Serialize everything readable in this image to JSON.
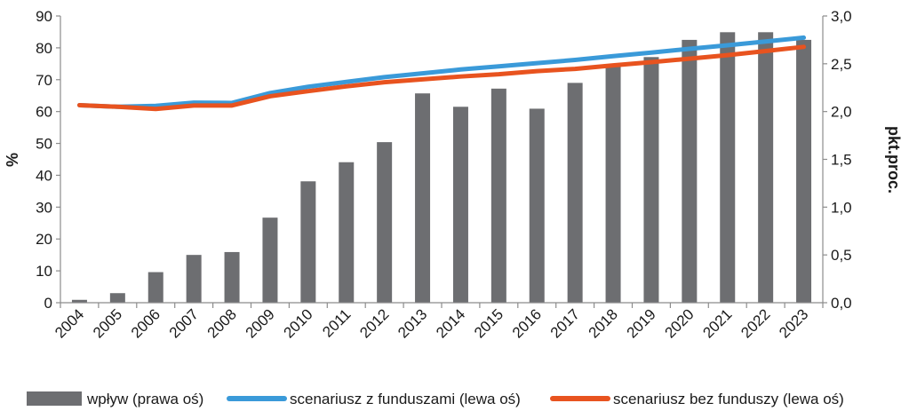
{
  "chart_data": {
    "type": "bar",
    "title": "",
    "categories": [
      "2004",
      "2005",
      "2006",
      "2007",
      "2008",
      "2009",
      "2010",
      "2011",
      "2012",
      "2013",
      "2014",
      "2015",
      "2016",
      "2017",
      "2018",
      "2019",
      "2020",
      "2021",
      "2022",
      "2023"
    ],
    "left_axis": {
      "label": "%",
      "ylim": [
        0,
        90
      ],
      "ticks": [
        "0",
        "10",
        "20",
        "30",
        "40",
        "50",
        "60",
        "70",
        "80",
        "90"
      ]
    },
    "right_axis": {
      "label": "pkt.proc.",
      "ylim": [
        0,
        3
      ],
      "ticks": [
        "0,0",
        "0,5",
        "1,0",
        "1,5",
        "2,0",
        "2,5",
        "3,0"
      ]
    },
    "gridlines": false,
    "series": [
      {
        "name": "wpływ (prawa oś)",
        "type": "bar",
        "axis": "right",
        "color": "#6d6e71",
        "values": [
          0.03,
          0.1,
          0.32,
          0.5,
          0.53,
          0.89,
          1.27,
          1.47,
          1.68,
          2.19,
          2.05,
          2.24,
          2.03,
          2.3,
          2.47,
          2.57,
          2.75,
          2.83,
          2.83,
          2.75
        ]
      },
      {
        "name": "scenariusz z funduszami (lewa oś)",
        "type": "line",
        "axis": "left",
        "color": "#3a9ad9",
        "values": [
          62.0,
          61.5,
          61.8,
          62.8,
          62.7,
          65.8,
          67.8,
          69.3,
          70.8,
          72.0,
          73.2,
          74.2,
          75.2,
          76.2,
          77.4,
          78.5,
          79.7,
          80.8,
          82.0,
          83.2
        ]
      },
      {
        "name": "scenariusz bez funduszy (lewa oś)",
        "type": "line",
        "axis": "left",
        "color": "#e8531f",
        "values": [
          62.0,
          61.5,
          60.8,
          61.9,
          61.9,
          64.8,
          66.4,
          67.9,
          69.2,
          70.1,
          71.0,
          71.7,
          72.7,
          73.4,
          74.5,
          75.5,
          76.6,
          77.7,
          79.0,
          80.3
        ]
      }
    ],
    "legend": "bottom"
  }
}
